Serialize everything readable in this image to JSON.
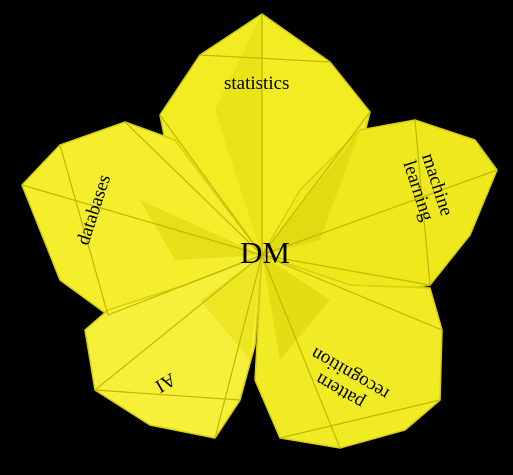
{
  "colors": {
    "background": "#000000",
    "paper": "#f0ea1e",
    "paper_light": "#f9f24a",
    "paper_shadow": "#c9c40a",
    "fold_line": "#b8b000"
  },
  "labels": {
    "center": "DM",
    "top": "statistics",
    "left": "databases",
    "right_line1": "machine",
    "right_line2": "learning",
    "bottom_left": "AI",
    "bottom_right_line1": "pattern",
    "bottom_right_line2": "recognition"
  }
}
